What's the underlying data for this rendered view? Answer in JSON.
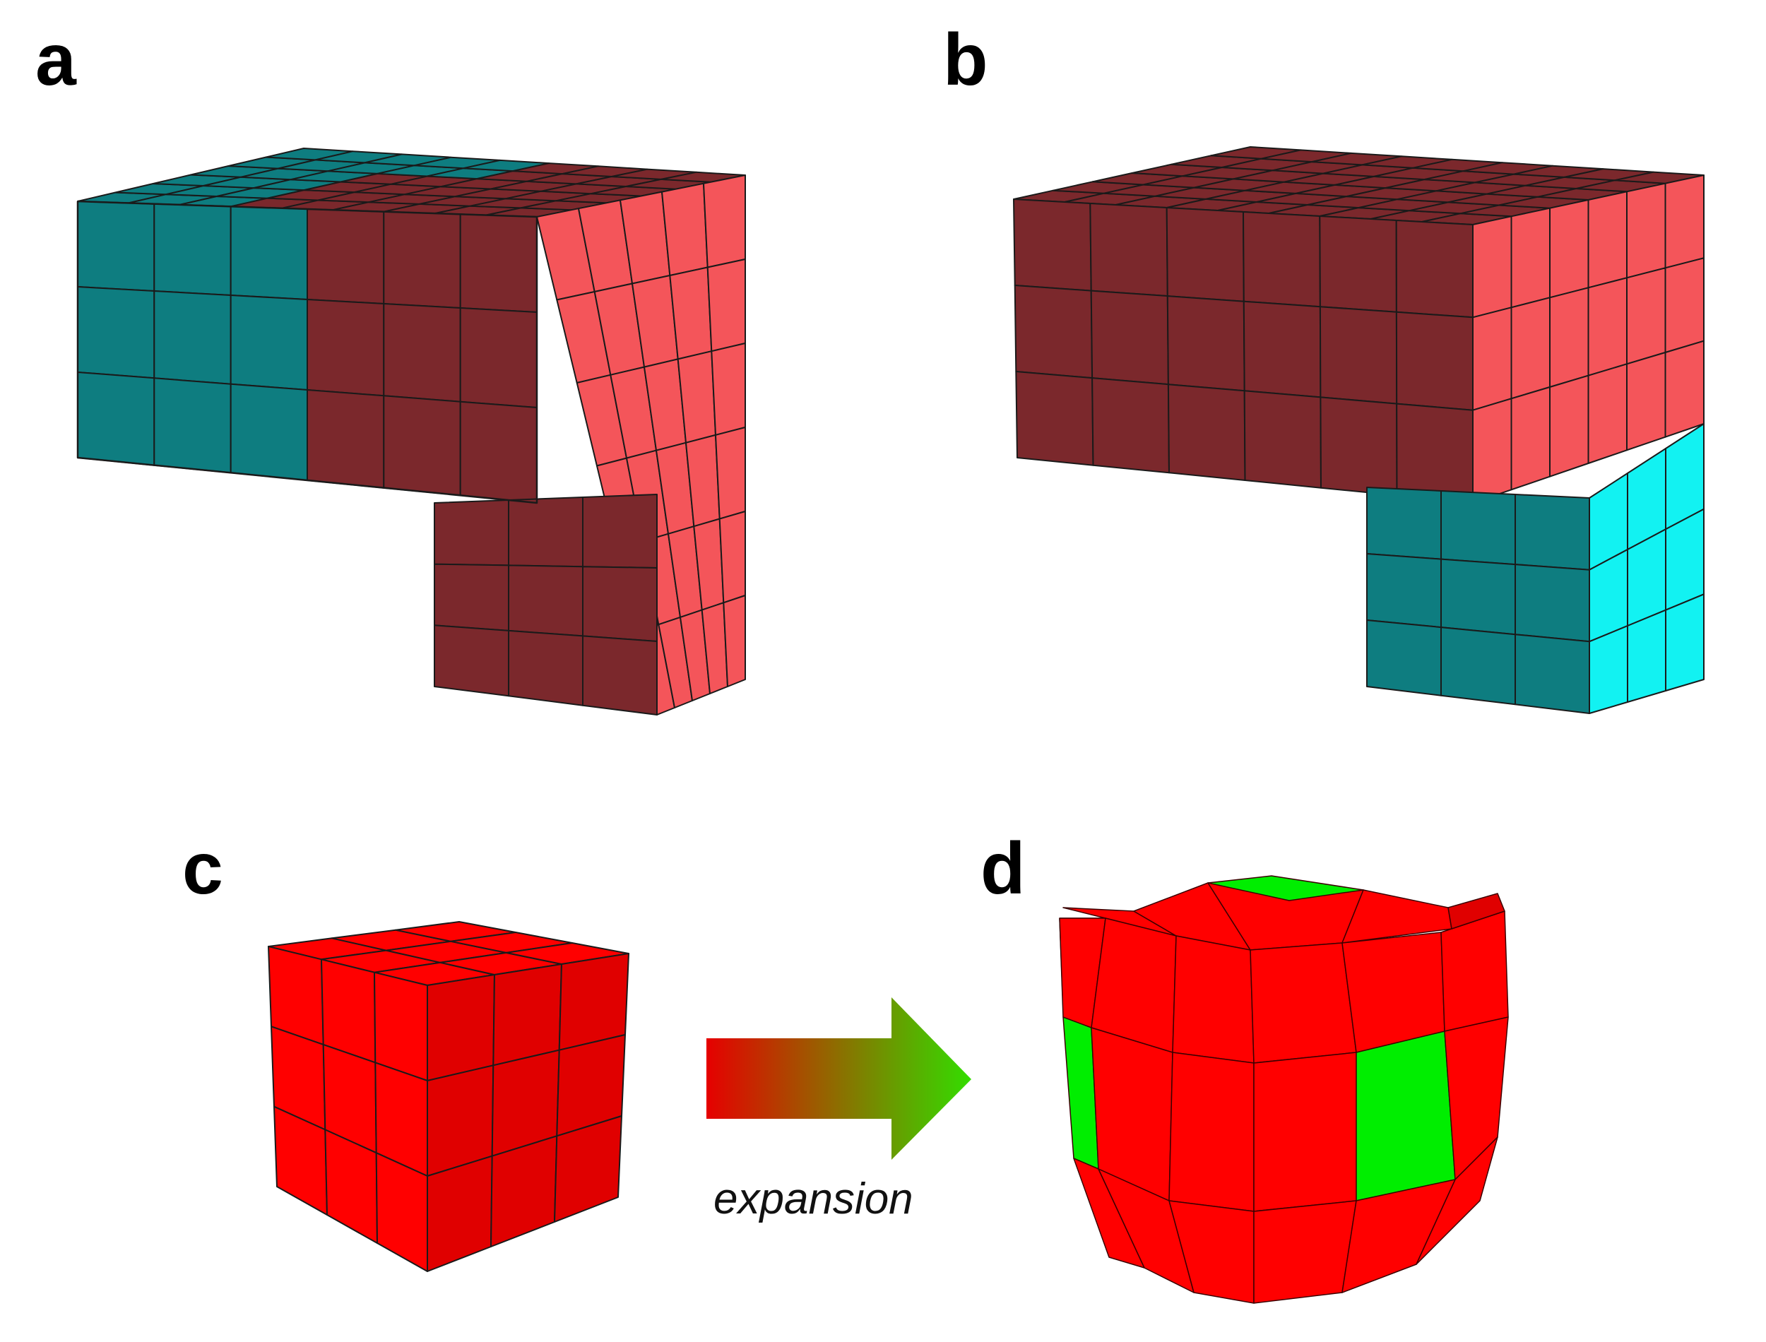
{
  "panels": [
    {
      "id": "a",
      "label": "a"
    },
    {
      "id": "b",
      "label": "b"
    },
    {
      "id": "c",
      "label": "c"
    },
    {
      "id": "d",
      "label": "d"
    }
  ],
  "arrow": {
    "caption": "expansion",
    "gradient_start": "#e60000",
    "gradient_end": "#33dd00"
  },
  "colors": {
    "dark_red": "#7b282c",
    "light_red": "#f4555a",
    "dark_teal": "#0e7d80",
    "bright_cyan": "#12f2f2",
    "cube_red": "#ff0000",
    "cube_red_dark": "#e00000",
    "expanded_green": "#00ee00"
  }
}
